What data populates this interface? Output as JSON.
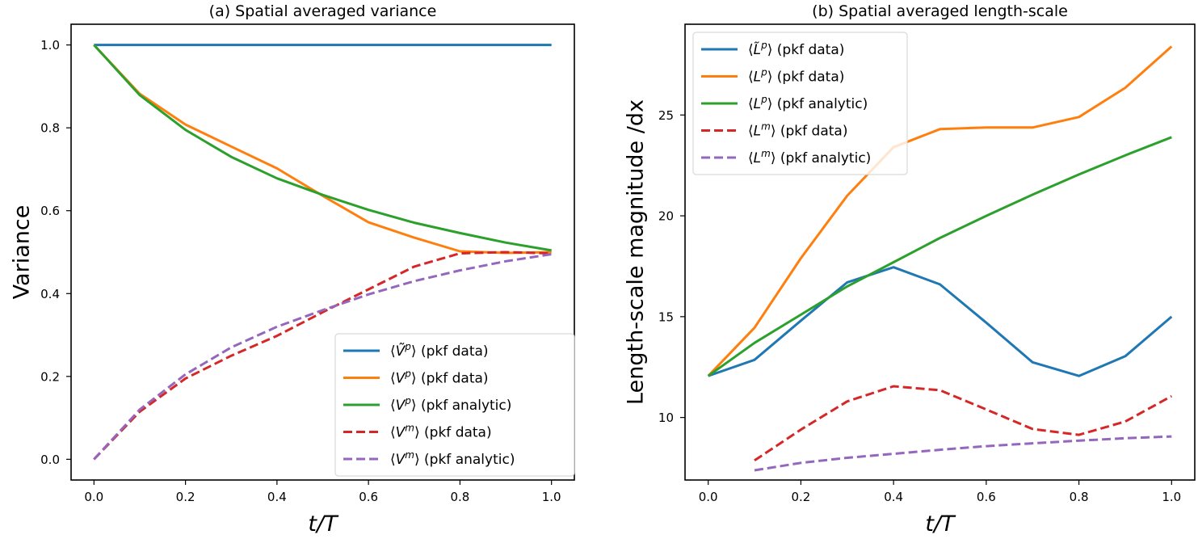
{
  "chart_data": [
    {
      "type": "line",
      "title": "(a) Spatial averaged variance",
      "xlabel": "t/T",
      "ylabel": "Variance",
      "xlim": [
        -0.05,
        1.05
      ],
      "ylim": [
        -0.05,
        1.05
      ],
      "xticks": [
        0.0,
        0.2,
        0.4,
        0.6,
        0.8,
        1.0
      ],
      "xtick_labels": [
        "0.0",
        "0.2",
        "0.4",
        "0.6",
        "0.8",
        "1.0"
      ],
      "yticks": [
        0.0,
        0.2,
        0.4,
        0.6,
        0.8,
        1.0
      ],
      "ytick_labels": [
        "0.0",
        "0.2",
        "0.4",
        "0.6",
        "0.8",
        "1.0"
      ],
      "grid": false,
      "legend_position": "lower-right",
      "x": [
        0.0,
        0.1,
        0.2,
        0.3,
        0.4,
        0.5,
        0.6,
        0.7,
        0.8,
        0.9,
        1.0
      ],
      "series": [
        {
          "name": "⟨Ṽᵖ⟩ (pkf data)",
          "symbol": "V",
          "tilde": true,
          "sup": "p",
          "suffix": "(pkf data)",
          "color": "#1f77b4",
          "dashed": false,
          "values": [
            1.0,
            1.0,
            1.0,
            1.0,
            1.0,
            1.0,
            1.0,
            1.0,
            1.0,
            1.0,
            1.0
          ]
        },
        {
          "name": "⟨Vᵖ⟩ (pkf data)",
          "symbol": "V",
          "tilde": false,
          "sup": "p",
          "suffix": "(pkf data)",
          "color": "#ff7f0e",
          "dashed": false,
          "values": [
            1.0,
            0.882,
            0.808,
            0.755,
            0.702,
            0.636,
            0.572,
            0.535,
            0.502,
            0.498,
            0.5
          ]
        },
        {
          "name": "⟨Vᵖ⟩ (pkf analytic)",
          "symbol": "V",
          "tilde": false,
          "sup": "p",
          "suffix": "(pkf analytic)",
          "color": "#2ca02c",
          "dashed": false,
          "values": [
            1.0,
            0.879,
            0.795,
            0.73,
            0.678,
            0.638,
            0.602,
            0.571,
            0.546,
            0.523,
            0.504
          ]
        },
        {
          "name": "⟨Vᵐ⟩ (pkf data)",
          "symbol": "V",
          "tilde": false,
          "sup": "m",
          "suffix": "(pkf data)",
          "color": "#d62728",
          "dashed": true,
          "values": [
            0.0,
            0.115,
            0.195,
            0.25,
            0.298,
            0.355,
            0.41,
            0.465,
            0.497,
            0.5,
            0.497
          ]
        },
        {
          "name": "⟨Vᵐ⟩ (pkf analytic)",
          "symbol": "V",
          "tilde": false,
          "sup": "m",
          "suffix": "(pkf analytic)",
          "color": "#9467bd",
          "dashed": true,
          "values": [
            0.0,
            0.12,
            0.205,
            0.27,
            0.32,
            0.36,
            0.398,
            0.43,
            0.456,
            0.478,
            0.495
          ]
        }
      ]
    },
    {
      "type": "line",
      "title": "(b) Spatial averaged length-scale",
      "xlabel": "t/T",
      "ylabel": "Length-scale magnitude /dx",
      "xlim": [
        -0.05,
        1.05
      ],
      "ylim": [
        6.9,
        29.5
      ],
      "xticks": [
        0.0,
        0.2,
        0.4,
        0.6,
        0.8,
        1.0
      ],
      "xtick_labels": [
        "0.0",
        "0.2",
        "0.4",
        "0.6",
        "0.8",
        "1.0"
      ],
      "yticks": [
        10,
        15,
        20,
        25
      ],
      "ytick_labels": [
        "10",
        "15",
        "20",
        "25"
      ],
      "grid": false,
      "legend_position": "upper-left",
      "x": [
        0.0,
        0.1,
        0.2,
        0.3,
        0.4,
        0.5,
        0.6,
        0.7,
        0.8,
        0.9,
        1.0
      ],
      "series": [
        {
          "name": "⟨L̃ᵖ⟩ (pkf data)",
          "symbol": "L",
          "tilde": true,
          "sup": "p",
          "suffix": "(pkf data)",
          "color": "#1f77b4",
          "dashed": false,
          "values": [
            12.06,
            12.86,
            14.8,
            16.7,
            17.45,
            16.6,
            14.7,
            12.74,
            12.06,
            13.04,
            15.0
          ]
        },
        {
          "name": "⟨Lᵖ⟩ (pkf data)",
          "symbol": "L",
          "tilde": false,
          "sup": "p",
          "suffix": "(pkf data)",
          "color": "#ff7f0e",
          "dashed": false,
          "values": [
            12.06,
            14.45,
            17.9,
            21.0,
            23.4,
            24.3,
            24.38,
            24.38,
            24.9,
            26.35,
            28.4
          ]
        },
        {
          "name": "⟨Lᵖ⟩ (pkf analytic)",
          "symbol": "L",
          "tilde": false,
          "sup": "p",
          "suffix": "(pkf analytic)",
          "color": "#2ca02c",
          "dashed": false,
          "values": [
            12.06,
            13.7,
            15.1,
            16.5,
            17.7,
            18.9,
            20.0,
            21.05,
            22.05,
            23.0,
            23.9
          ]
        },
        {
          "name": "⟨Lᵐ⟩ (pkf data)",
          "symbol": "L",
          "tilde": false,
          "sup": "m",
          "suffix": "(pkf data)",
          "color": "#d62728",
          "dashed": true,
          "values": [
            null,
            7.87,
            9.4,
            10.8,
            11.55,
            11.35,
            10.4,
            9.43,
            9.14,
            9.8,
            11.06
          ]
        },
        {
          "name": "⟨Lᵐ⟩ (pkf analytic)",
          "symbol": "L",
          "tilde": false,
          "sup": "m",
          "suffix": "(pkf analytic)",
          "color": "#9467bd",
          "dashed": true,
          "values": [
            null,
            7.38,
            7.75,
            8.0,
            8.2,
            8.4,
            8.58,
            8.72,
            8.85,
            8.97,
            9.06
          ]
        }
      ]
    }
  ]
}
